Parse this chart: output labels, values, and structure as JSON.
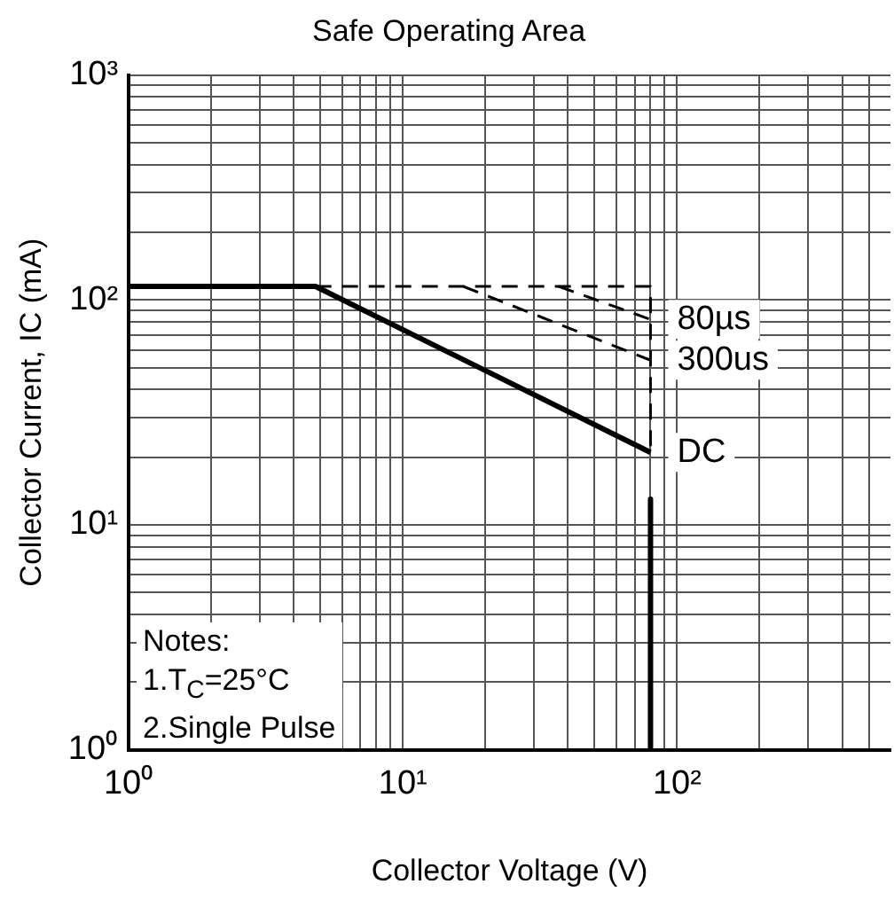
{
  "chart_data": {
    "type": "line",
    "title": "Safe Operating Area",
    "xlabel": "Collector Voltage (V)",
    "ylabel": "Collector Current, IC (mA)",
    "log": "xy",
    "xlim": [
      1,
      600
    ],
    "ylim": [
      1,
      1000
    ],
    "xticks": [
      {
        "value": 1,
        "label": "10⁰"
      },
      {
        "value": 2,
        "label": null
      },
      {
        "value": 3,
        "label": null
      },
      {
        "value": 4,
        "label": null
      },
      {
        "value": 5,
        "label": null
      },
      {
        "value": 6,
        "label": null
      },
      {
        "value": 7,
        "label": null
      },
      {
        "value": 8,
        "label": null
      },
      {
        "value": 9,
        "label": null
      },
      {
        "value": 10,
        "label": "10¹"
      },
      {
        "value": 20,
        "label": null
      },
      {
        "value": 30,
        "label": null
      },
      {
        "value": 40,
        "label": null
      },
      {
        "value": 50,
        "label": null
      },
      {
        "value": 60,
        "label": null
      },
      {
        "value": 70,
        "label": null
      },
      {
        "value": 80,
        "label": null
      },
      {
        "value": 90,
        "label": null
      },
      {
        "value": 100,
        "label": "10²"
      },
      {
        "value": 200,
        "label": null
      },
      {
        "value": 300,
        "label": null
      },
      {
        "value": 400,
        "label": null
      },
      {
        "value": 500,
        "label": null
      }
    ],
    "yticks": [
      {
        "value": 1,
        "label": "10⁰"
      },
      {
        "value": 2,
        "label": null
      },
      {
        "value": 3,
        "label": null
      },
      {
        "value": 4,
        "label": null
      },
      {
        "value": 5,
        "label": null
      },
      {
        "value": 6,
        "label": null
      },
      {
        "value": 7,
        "label": null
      },
      {
        "value": 8,
        "label": null
      },
      {
        "value": 9,
        "label": null
      },
      {
        "value": 10,
        "label": "10¹"
      },
      {
        "value": 20,
        "label": null
      },
      {
        "value": 30,
        "label": null
      },
      {
        "value": 40,
        "label": null
      },
      {
        "value": 50,
        "label": null
      },
      {
        "value": 60,
        "label": null
      },
      {
        "value": 70,
        "label": null
      },
      {
        "value": 80,
        "label": null
      },
      {
        "value": 90,
        "label": null
      },
      {
        "value": 100,
        "label": "10²"
      },
      {
        "value": 200,
        "label": null
      },
      {
        "value": 300,
        "label": null
      },
      {
        "value": 400,
        "label": null
      },
      {
        "value": 500,
        "label": null
      },
      {
        "value": 600,
        "label": null
      },
      {
        "value": 700,
        "label": null
      },
      {
        "value": 800,
        "label": null
      },
      {
        "value": 900,
        "label": null
      },
      {
        "value": 1000,
        "label": "10³"
      }
    ],
    "grid": true,
    "legend": false,
    "marker": "none",
    "series": [
      {
        "name": "DC",
        "color": "#000000",
        "line_style": "solid",
        "x": [
          1,
          4.8,
          80
        ],
        "values": [
          115,
          115,
          21
        ]
      },
      {
        "color": "#000000",
        "line_style": "solid",
        "x": [
          80,
          80
        ],
        "values": [
          13,
          1
        ]
      },
      {
        "color": "#000000",
        "line_style": "dashed",
        "x": [
          4.8,
          80,
          80,
          80
        ],
        "values": [
          115,
          115,
          82,
          21
        ]
      },
      {
        "name": "80µs",
        "color": "#000000",
        "line_style": "dashed",
        "x": [
          37,
          80
        ],
        "values": [
          115,
          82
        ]
      },
      {
        "name": "300us",
        "color": "#000000",
        "line_style": "dashed",
        "x": [
          16.6,
          80
        ],
        "values": [
          115,
          54
        ]
      }
    ],
    "annotations": [
      "Notes:\n1.T$_{C}$=25°C\n2.Single Pulse"
    ]
  }
}
